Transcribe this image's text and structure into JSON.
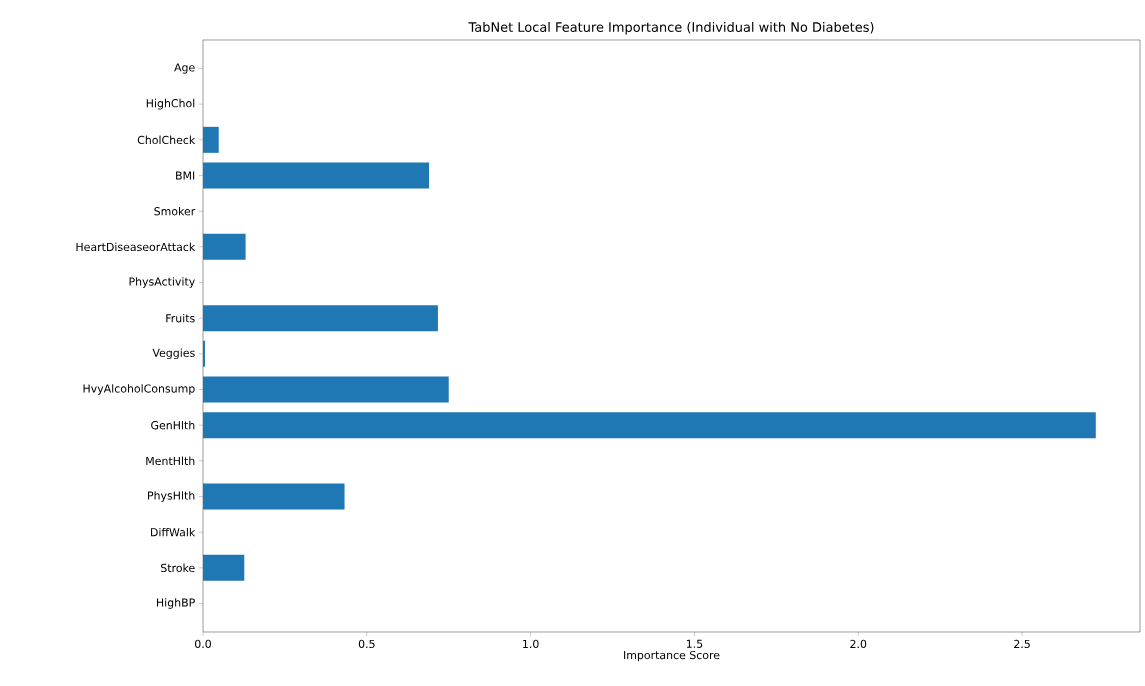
{
  "chart_data": {
    "type": "bar",
    "orientation": "horizontal",
    "title": "TabNet Local Feature Importance (Individual with No Diabetes)",
    "xlabel": "Importance Score",
    "categories": [
      "Age",
      "HighChol",
      "CholCheck",
      "BMI",
      "Smoker",
      "HeartDiseaseorAttack",
      "PhysActivity",
      "Fruits",
      "Veggies",
      "HvyAlcoholConsump",
      "GenHlth",
      "MentHlth",
      "PhysHlth",
      "DiffWalk",
      "Stroke",
      "HighBP"
    ],
    "values": [
      0,
      0,
      0.048,
      0.69,
      0,
      0.13,
      0,
      0.717,
      0.006,
      0.75,
      2.725,
      0,
      0.432,
      0,
      0.126,
      0
    ],
    "color": "#1f77b4",
    "xlim": [
      0,
      2.86
    ],
    "xticks": [
      {
        "value": 0,
        "label": "0.0"
      },
      0.5,
      {
        "value": 1,
        "label": "1.0"
      },
      1.5,
      {
        "value": 2,
        "label": "2.0"
      },
      2.5
    ],
    "grid": false
  }
}
